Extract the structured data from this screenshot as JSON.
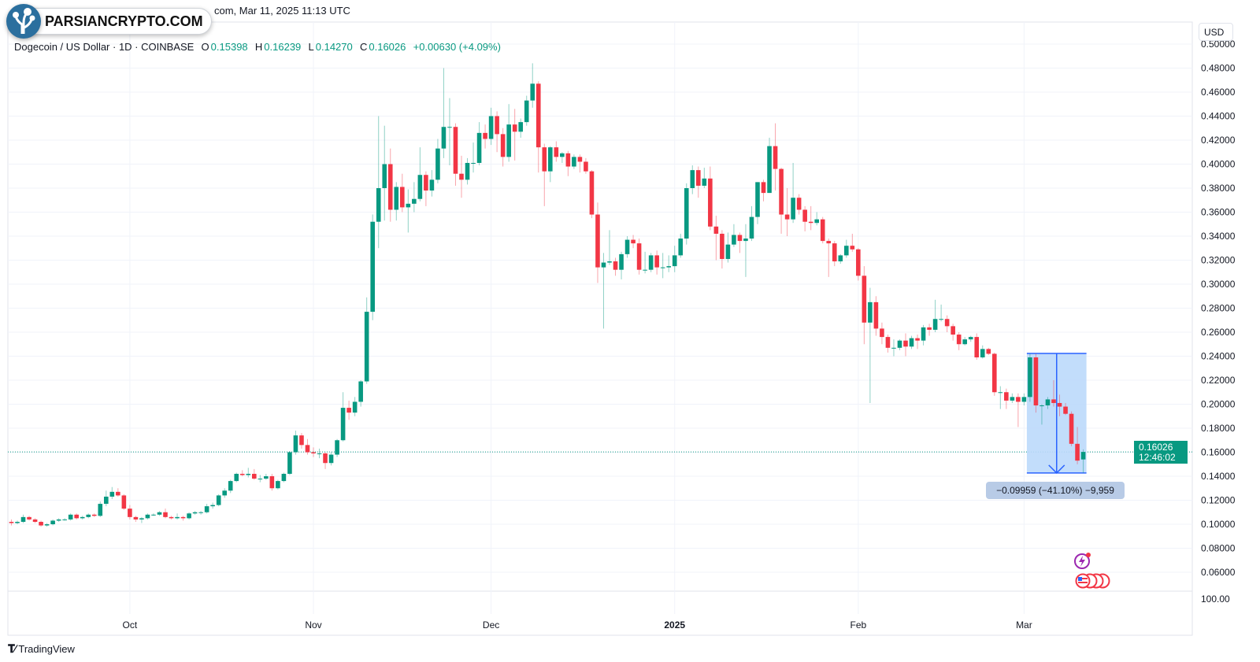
{
  "header": {
    "source_line": "com, Mar 11, 2025 11:13 UTC",
    "symbol": "Dogecoin / US Dollar · 1D · COINBASE",
    "open_label": "O",
    "open": "0.15398",
    "high_label": "H",
    "high": "0.16239",
    "low_label": "L",
    "low": "0.14270",
    "close_label": "C",
    "close": "0.16026",
    "change": "+0.00630 (+4.09%)"
  },
  "watermark": {
    "text": "PARSIANCRYPTO.COM"
  },
  "currency_button": "USD",
  "last_price": {
    "value": "0.16026",
    "countdown": "12:46:02"
  },
  "measure": {
    "label": "−0.09959 (−41.10%) −9,959",
    "from": 0.24229,
    "to": 0.1427,
    "start_date": "2025-03-02",
    "end_date": "2025-03-11"
  },
  "lower_pane_label": "100.00",
  "footer": {
    "brand": "TradingView"
  },
  "colors": {
    "up": "#089981",
    "down": "#F23645",
    "measure_fill": "#BBD9FB",
    "measure_line": "#2962FF"
  },
  "chart_data": {
    "type": "candlestick",
    "title": "Dogecoin / US Dollar · 1D · COINBASE",
    "ylim": [
      0.06,
      0.5
    ],
    "grid": true,
    "y_ticks": [
      "0.50000",
      "0.48000",
      "0.46000",
      "0.44000",
      "0.42000",
      "0.40000",
      "0.38000",
      "0.36000",
      "0.34000",
      "0.32000",
      "0.30000",
      "0.28000",
      "0.26000",
      "0.24000",
      "0.22000",
      "0.20000",
      "0.18000",
      "0.16000",
      "0.14000",
      "0.12000",
      "0.10000",
      "0.08000",
      "0.06000"
    ],
    "x_ticks": [
      {
        "label": "Oct",
        "date": "2024-10-01",
        "bold": false
      },
      {
        "label": "Nov",
        "date": "2024-11-01",
        "bold": false
      },
      {
        "label": "Dec",
        "date": "2024-12-01",
        "bold": false
      },
      {
        "label": "2025",
        "date": "2025-01-01",
        "bold": true
      },
      {
        "label": "Feb",
        "date": "2025-02-01",
        "bold": false
      },
      {
        "label": "Mar",
        "date": "2025-03-01",
        "bold": false
      }
    ],
    "columns": [
      "date",
      "open",
      "high",
      "low",
      "close"
    ],
    "candles": [
      [
        "2024-09-11",
        0.102,
        0.104,
        0.099,
        0.101
      ],
      [
        "2024-09-12",
        0.101,
        0.103,
        0.1,
        0.102
      ],
      [
        "2024-09-13",
        0.102,
        0.108,
        0.101,
        0.106
      ],
      [
        "2024-09-14",
        0.106,
        0.107,
        0.103,
        0.104
      ],
      [
        "2024-09-15",
        0.104,
        0.105,
        0.101,
        0.102
      ],
      [
        "2024-09-16",
        0.102,
        0.103,
        0.098,
        0.099
      ],
      [
        "2024-09-17",
        0.099,
        0.101,
        0.098,
        0.1
      ],
      [
        "2024-09-18",
        0.1,
        0.104,
        0.099,
        0.103
      ],
      [
        "2024-09-19",
        0.103,
        0.105,
        0.102,
        0.104
      ],
      [
        "2024-09-20",
        0.104,
        0.105,
        0.103,
        0.104
      ],
      [
        "2024-09-21",
        0.104,
        0.109,
        0.103,
        0.108
      ],
      [
        "2024-09-22",
        0.108,
        0.109,
        0.104,
        0.105
      ],
      [
        "2024-09-23",
        0.105,
        0.107,
        0.104,
        0.106
      ],
      [
        "2024-09-24",
        0.106,
        0.109,
        0.105,
        0.108
      ],
      [
        "2024-09-25",
        0.108,
        0.109,
        0.106,
        0.107
      ],
      [
        "2024-09-26",
        0.107,
        0.119,
        0.106,
        0.117
      ],
      [
        "2024-09-27",
        0.117,
        0.128,
        0.115,
        0.123
      ],
      [
        "2024-09-28",
        0.123,
        0.131,
        0.121,
        0.127
      ],
      [
        "2024-09-29",
        0.127,
        0.13,
        0.123,
        0.124
      ],
      [
        "2024-09-30",
        0.124,
        0.125,
        0.112,
        0.113
      ],
      [
        "2024-10-01",
        0.113,
        0.116,
        0.104,
        0.106
      ],
      [
        "2024-10-02",
        0.106,
        0.107,
        0.102,
        0.104
      ],
      [
        "2024-10-03",
        0.104,
        0.106,
        0.101,
        0.105
      ],
      [
        "2024-10-04",
        0.105,
        0.109,
        0.104,
        0.108
      ],
      [
        "2024-10-05",
        0.108,
        0.109,
        0.107,
        0.108
      ],
      [
        "2024-10-06",
        0.108,
        0.111,
        0.107,
        0.11
      ],
      [
        "2024-10-07",
        0.11,
        0.113,
        0.105,
        0.106
      ],
      [
        "2024-10-08",
        0.106,
        0.107,
        0.104,
        0.105
      ],
      [
        "2024-10-09",
        0.105,
        0.109,
        0.104,
        0.106
      ],
      [
        "2024-10-10",
        0.106,
        0.107,
        0.103,
        0.105
      ],
      [
        "2024-10-11",
        0.105,
        0.11,
        0.104,
        0.109
      ],
      [
        "2024-10-12",
        0.109,
        0.111,
        0.108,
        0.11
      ],
      [
        "2024-10-13",
        0.11,
        0.111,
        0.108,
        0.11
      ],
      [
        "2024-10-14",
        0.11,
        0.117,
        0.109,
        0.115
      ],
      [
        "2024-10-15",
        0.115,
        0.118,
        0.113,
        0.116
      ],
      [
        "2024-10-16",
        0.116,
        0.125,
        0.115,
        0.124
      ],
      [
        "2024-10-17",
        0.124,
        0.13,
        0.122,
        0.128
      ],
      [
        "2024-10-18",
        0.128,
        0.137,
        0.126,
        0.136
      ],
      [
        "2024-10-19",
        0.136,
        0.143,
        0.135,
        0.142
      ],
      [
        "2024-10-20",
        0.142,
        0.145,
        0.14,
        0.141
      ],
      [
        "2024-10-21",
        0.141,
        0.147,
        0.139,
        0.142
      ],
      [
        "2024-10-22",
        0.142,
        0.146,
        0.137,
        0.138
      ],
      [
        "2024-10-23",
        0.138,
        0.141,
        0.135,
        0.138
      ],
      [
        "2024-10-24",
        0.138,
        0.142,
        0.137,
        0.14
      ],
      [
        "2024-10-25",
        0.14,
        0.142,
        0.128,
        0.13
      ],
      [
        "2024-10-26",
        0.13,
        0.137,
        0.129,
        0.136
      ],
      [
        "2024-10-27",
        0.136,
        0.143,
        0.135,
        0.142
      ],
      [
        "2024-10-28",
        0.142,
        0.161,
        0.141,
        0.16
      ],
      [
        "2024-10-29",
        0.16,
        0.178,
        0.158,
        0.174
      ],
      [
        "2024-10-30",
        0.174,
        0.176,
        0.163,
        0.166
      ],
      [
        "2024-10-31",
        0.166,
        0.171,
        0.158,
        0.16
      ],
      [
        "2024-11-01",
        0.16,
        0.164,
        0.156,
        0.159
      ],
      [
        "2024-11-02",
        0.159,
        0.163,
        0.155,
        0.159
      ],
      [
        "2024-11-03",
        0.159,
        0.16,
        0.146,
        0.151
      ],
      [
        "2024-11-04",
        0.151,
        0.16,
        0.149,
        0.158
      ],
      [
        "2024-11-05",
        0.158,
        0.171,
        0.156,
        0.17
      ],
      [
        "2024-11-06",
        0.17,
        0.21,
        0.169,
        0.197
      ],
      [
        "2024-11-07",
        0.197,
        0.203,
        0.187,
        0.193
      ],
      [
        "2024-11-08",
        0.193,
        0.206,
        0.19,
        0.202
      ],
      [
        "2024-11-09",
        0.202,
        0.22,
        0.198,
        0.219
      ],
      [
        "2024-11-10",
        0.219,
        0.289,
        0.217,
        0.277
      ],
      [
        "2024-11-11",
        0.277,
        0.358,
        0.27,
        0.352
      ],
      [
        "2024-11-12",
        0.352,
        0.44,
        0.33,
        0.38
      ],
      [
        "2024-11-13",
        0.38,
        0.432,
        0.353,
        0.4
      ],
      [
        "2024-11-14",
        0.4,
        0.413,
        0.352,
        0.362
      ],
      [
        "2024-11-15",
        0.362,
        0.385,
        0.353,
        0.381
      ],
      [
        "2024-11-16",
        0.381,
        0.392,
        0.36,
        0.364
      ],
      [
        "2024-11-17",
        0.364,
        0.379,
        0.343,
        0.367
      ],
      [
        "2024-11-18",
        0.367,
        0.385,
        0.36,
        0.371
      ],
      [
        "2024-11-19",
        0.371,
        0.414,
        0.369,
        0.391
      ],
      [
        "2024-11-20",
        0.391,
        0.394,
        0.365,
        0.378
      ],
      [
        "2024-11-21",
        0.378,
        0.395,
        0.373,
        0.387
      ],
      [
        "2024-11-22",
        0.387,
        0.421,
        0.384,
        0.413
      ],
      [
        "2024-11-23",
        0.413,
        0.48,
        0.405,
        0.431
      ],
      [
        "2024-11-24",
        0.431,
        0.455,
        0.399,
        0.431
      ],
      [
        "2024-11-25",
        0.431,
        0.434,
        0.382,
        0.392
      ],
      [
        "2024-11-26",
        0.392,
        0.407,
        0.372,
        0.387
      ],
      [
        "2024-11-27",
        0.387,
        0.405,
        0.383,
        0.401
      ],
      [
        "2024-11-28",
        0.401,
        0.418,
        0.393,
        0.401
      ],
      [
        "2024-11-29",
        0.401,
        0.435,
        0.399,
        0.426
      ],
      [
        "2024-11-30",
        0.426,
        0.433,
        0.413,
        0.421
      ],
      [
        "2024-12-01",
        0.421,
        0.447,
        0.416,
        0.44
      ],
      [
        "2024-12-02",
        0.44,
        0.444,
        0.41,
        0.425
      ],
      [
        "2024-12-03",
        0.425,
        0.43,
        0.398,
        0.406
      ],
      [
        "2024-12-04",
        0.406,
        0.45,
        0.402,
        0.433
      ],
      [
        "2024-12-05",
        0.433,
        0.446,
        0.403,
        0.427
      ],
      [
        "2024-12-06",
        0.427,
        0.438,
        0.422,
        0.435
      ],
      [
        "2024-12-07",
        0.435,
        0.457,
        0.432,
        0.453
      ],
      [
        "2024-12-08",
        0.453,
        0.484,
        0.447,
        0.467
      ],
      [
        "2024-12-09",
        0.467,
        0.469,
        0.393,
        0.414
      ],
      [
        "2024-12-10",
        0.414,
        0.417,
        0.365,
        0.394
      ],
      [
        "2024-12-11",
        0.394,
        0.415,
        0.385,
        0.414
      ],
      [
        "2024-12-12",
        0.414,
        0.419,
        0.402,
        0.406
      ],
      [
        "2024-12-13",
        0.406,
        0.41,
        0.401,
        0.409
      ],
      [
        "2024-12-14",
        0.409,
        0.411,
        0.39,
        0.398
      ],
      [
        "2024-12-15",
        0.398,
        0.408,
        0.396,
        0.406
      ],
      [
        "2024-12-16",
        0.406,
        0.408,
        0.393,
        0.402
      ],
      [
        "2024-12-17",
        0.402,
        0.405,
        0.392,
        0.394
      ],
      [
        "2024-12-18",
        0.394,
        0.395,
        0.355,
        0.358
      ],
      [
        "2024-12-19",
        0.358,
        0.368,
        0.301,
        0.314
      ],
      [
        "2024-12-20",
        0.314,
        0.326,
        0.263,
        0.318
      ],
      [
        "2024-12-21",
        0.318,
        0.345,
        0.316,
        0.319
      ],
      [
        "2024-12-22",
        0.319,
        0.322,
        0.307,
        0.312
      ],
      [
        "2024-12-23",
        0.312,
        0.327,
        0.304,
        0.325
      ],
      [
        "2024-12-24",
        0.325,
        0.34,
        0.322,
        0.337
      ],
      [
        "2024-12-25",
        0.337,
        0.341,
        0.33,
        0.334
      ],
      [
        "2024-12-26",
        0.334,
        0.338,
        0.308,
        0.312
      ],
      [
        "2024-12-27",
        0.312,
        0.327,
        0.309,
        0.312
      ],
      [
        "2024-12-28",
        0.312,
        0.326,
        0.31,
        0.324
      ],
      [
        "2024-12-29",
        0.324,
        0.328,
        0.308,
        0.314
      ],
      [
        "2024-12-30",
        0.314,
        0.326,
        0.305,
        0.314
      ],
      [
        "2024-12-31",
        0.314,
        0.324,
        0.31,
        0.315
      ],
      [
        "2025-01-01",
        0.315,
        0.332,
        0.31,
        0.324
      ],
      [
        "2025-01-02",
        0.324,
        0.342,
        0.322,
        0.338
      ],
      [
        "2025-01-03",
        0.338,
        0.384,
        0.333,
        0.38
      ],
      [
        "2025-01-04",
        0.38,
        0.399,
        0.375,
        0.395
      ],
      [
        "2025-01-05",
        0.395,
        0.398,
        0.372,
        0.382
      ],
      [
        "2025-01-06",
        0.382,
        0.397,
        0.38,
        0.388
      ],
      [
        "2025-01-07",
        0.388,
        0.398,
        0.345,
        0.348
      ],
      [
        "2025-01-08",
        0.348,
        0.357,
        0.32,
        0.342
      ],
      [
        "2025-01-09",
        0.342,
        0.345,
        0.313,
        0.321
      ],
      [
        "2025-01-10",
        0.321,
        0.343,
        0.318,
        0.333
      ],
      [
        "2025-01-11",
        0.333,
        0.35,
        0.331,
        0.341
      ],
      [
        "2025-01-12",
        0.341,
        0.343,
        0.326,
        0.336
      ],
      [
        "2025-01-13",
        0.336,
        0.35,
        0.306,
        0.338
      ],
      [
        "2025-01-14",
        0.338,
        0.365,
        0.336,
        0.356
      ],
      [
        "2025-01-15",
        0.356,
        0.385,
        0.35,
        0.385
      ],
      [
        "2025-01-16",
        0.385,
        0.387,
        0.369,
        0.376
      ],
      [
        "2025-01-17",
        0.376,
        0.422,
        0.376,
        0.415
      ],
      [
        "2025-01-18",
        0.415,
        0.434,
        0.378,
        0.396
      ],
      [
        "2025-01-19",
        0.396,
        0.397,
        0.342,
        0.358
      ],
      [
        "2025-01-20",
        0.358,
        0.38,
        0.34,
        0.354
      ],
      [
        "2025-01-21",
        0.354,
        0.401,
        0.351,
        0.372
      ],
      [
        "2025-01-22",
        0.372,
        0.375,
        0.358,
        0.362
      ],
      [
        "2025-01-23",
        0.362,
        0.365,
        0.344,
        0.352
      ],
      [
        "2025-01-24",
        0.352,
        0.365,
        0.345,
        0.351
      ],
      [
        "2025-01-25",
        0.351,
        0.36,
        0.349,
        0.354
      ],
      [
        "2025-01-26",
        0.354,
        0.356,
        0.334,
        0.336
      ],
      [
        "2025-01-27",
        0.336,
        0.338,
        0.306,
        0.334
      ],
      [
        "2025-01-28",
        0.334,
        0.336,
        0.315,
        0.319
      ],
      [
        "2025-01-29",
        0.319,
        0.325,
        0.317,
        0.324
      ],
      [
        "2025-01-30",
        0.324,
        0.337,
        0.322,
        0.332
      ],
      [
        "2025-01-31",
        0.332,
        0.342,
        0.327,
        0.329
      ],
      [
        "2025-02-01",
        0.329,
        0.33,
        0.303,
        0.307
      ],
      [
        "2025-02-02",
        0.307,
        0.315,
        0.25,
        0.268
      ],
      [
        "2025-02-03",
        0.268,
        0.297,
        0.201,
        0.285
      ],
      [
        "2025-02-04",
        0.285,
        0.29,
        0.257,
        0.263
      ],
      [
        "2025-02-05",
        0.263,
        0.268,
        0.25,
        0.256
      ],
      [
        "2025-02-06",
        0.256,
        0.258,
        0.243,
        0.247
      ],
      [
        "2025-02-07",
        0.247,
        0.254,
        0.24,
        0.247
      ],
      [
        "2025-02-08",
        0.247,
        0.254,
        0.245,
        0.253
      ],
      [
        "2025-02-09",
        0.253,
        0.259,
        0.24,
        0.248
      ],
      [
        "2025-02-10",
        0.248,
        0.257,
        0.246,
        0.255
      ],
      [
        "2025-02-11",
        0.255,
        0.258,
        0.246,
        0.253
      ],
      [
        "2025-02-12",
        0.253,
        0.266,
        0.249,
        0.264
      ],
      [
        "2025-02-13",
        0.264,
        0.267,
        0.257,
        0.262
      ],
      [
        "2025-02-14",
        0.262,
        0.287,
        0.26,
        0.271
      ],
      [
        "2025-02-15",
        0.271,
        0.283,
        0.269,
        0.271
      ],
      [
        "2025-02-16",
        0.271,
        0.274,
        0.26,
        0.265
      ],
      [
        "2025-02-17",
        0.265,
        0.267,
        0.253,
        0.258
      ],
      [
        "2025-02-18",
        0.258,
        0.26,
        0.245,
        0.25
      ],
      [
        "2025-02-19",
        0.25,
        0.256,
        0.249,
        0.254
      ],
      [
        "2025-02-20",
        0.254,
        0.257,
        0.252,
        0.256
      ],
      [
        "2025-02-21",
        0.256,
        0.259,
        0.237,
        0.239
      ],
      [
        "2025-02-22",
        0.239,
        0.249,
        0.238,
        0.246
      ],
      [
        "2025-02-23",
        0.246,
        0.247,
        0.241,
        0.242
      ],
      [
        "2025-02-24",
        0.242,
        0.243,
        0.207,
        0.21
      ],
      [
        "2025-02-25",
        0.21,
        0.215,
        0.196,
        0.21
      ],
      [
        "2025-02-26",
        0.21,
        0.213,
        0.196,
        0.203
      ],
      [
        "2025-02-27",
        0.203,
        0.209,
        0.201,
        0.206
      ],
      [
        "2025-02-28",
        0.206,
        0.209,
        0.181,
        0.202
      ],
      [
        "2025-03-01",
        0.202,
        0.209,
        0.199,
        0.206
      ],
      [
        "2025-03-02",
        0.206,
        0.242,
        0.202,
        0.239
      ],
      [
        "2025-03-03",
        0.239,
        0.242,
        0.193,
        0.199
      ],
      [
        "2025-03-04",
        0.199,
        0.2,
        0.183,
        0.199
      ],
      [
        "2025-03-05",
        0.199,
        0.206,
        0.196,
        0.204
      ],
      [
        "2025-03-06",
        0.204,
        0.22,
        0.198,
        0.201
      ],
      [
        "2025-03-07",
        0.201,
        0.208,
        0.19,
        0.198
      ],
      [
        "2025-03-08",
        0.198,
        0.201,
        0.191,
        0.192
      ],
      [
        "2025-03-09",
        0.192,
        0.194,
        0.165,
        0.167
      ],
      [
        "2025-03-10",
        0.167,
        0.181,
        0.15,
        0.153
      ],
      [
        "2025-03-11",
        0.15398,
        0.16239,
        0.1427,
        0.16026
      ]
    ],
    "last_price": 0.16026
  }
}
